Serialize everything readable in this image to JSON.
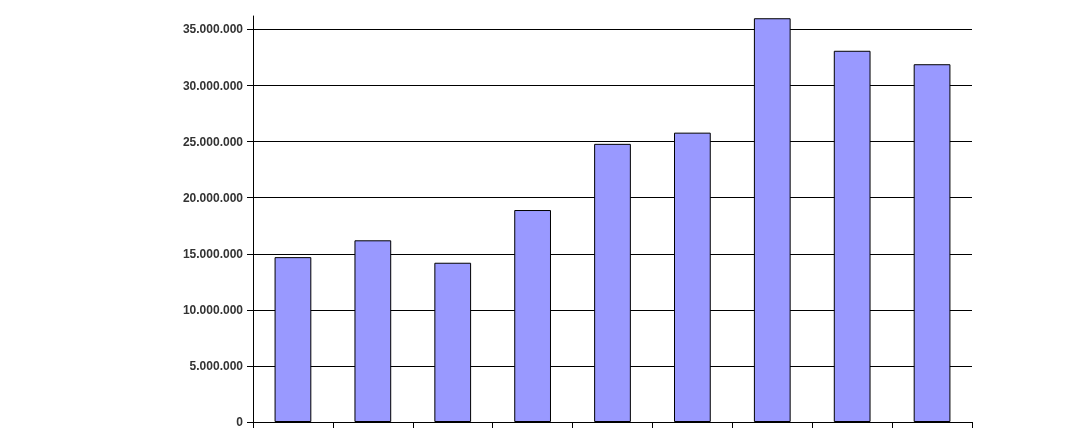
{
  "chart_data": {
    "type": "bar",
    "categories": [
      null,
      null,
      null,
      null,
      null,
      null,
      null,
      null,
      null
    ],
    "values": [
      14700000,
      16200000,
      14200000,
      18900000,
      24800000,
      25800000,
      36000000,
      33100000,
      31900000
    ],
    "color": "#9999ff",
    "ylim": [
      0,
      36200000
    ],
    "yticks": [
      {
        "value": 0,
        "label": "0"
      },
      {
        "value": 5000000,
        "label": "5.000.000"
      },
      {
        "value": 10000000,
        "label": "10.000.000"
      },
      {
        "value": 15000000,
        "label": "15.000.000"
      },
      {
        "value": 20000000,
        "label": "20.000.000"
      },
      {
        "value": 25000000,
        "label": "25.000.000"
      },
      {
        "value": 30000000,
        "label": "30.000.000"
      },
      {
        "value": 35000000,
        "label": "35.000.000"
      }
    ],
    "grid": "y",
    "tick_labels": "y"
  }
}
